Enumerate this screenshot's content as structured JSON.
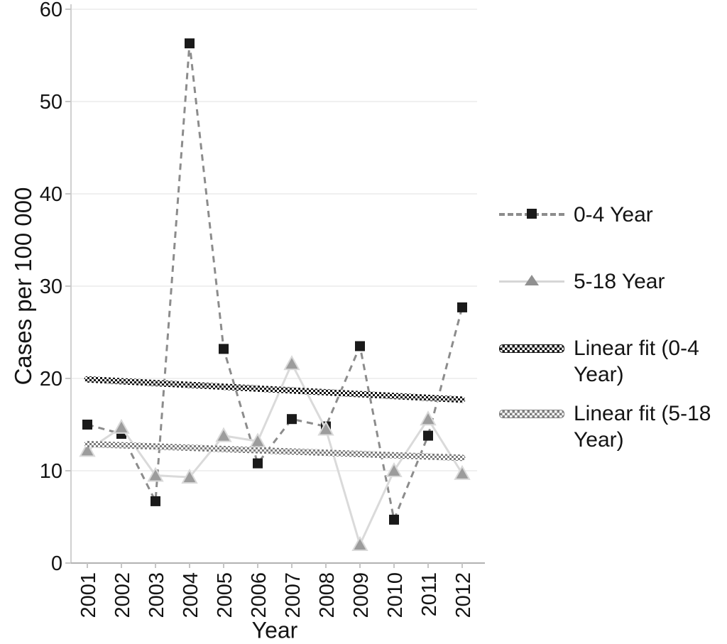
{
  "axes": {
    "y_label": "Cases per 100 000",
    "x_label": "Year",
    "y_ticks": [
      0,
      10,
      20,
      30,
      40,
      50,
      60
    ],
    "x_tick_labels": [
      "2001",
      "2002",
      "2003",
      "2004",
      "2005",
      "2006",
      "2007",
      "2008",
      "2009",
      "2010",
      "2011",
      "2012"
    ]
  },
  "legend": {
    "entries": [
      {
        "label": "0-4 Year"
      },
      {
        "label": "5-18 Year"
      },
      {
        "label": "Linear fit (0-4 Year)"
      },
      {
        "label": "Linear fit (5-18 Year)"
      }
    ]
  },
  "colors": {
    "series_0_4_line": "#8c8c8c",
    "series_0_4_marker": "#1a1a1a",
    "series_5_18_line": "#dadada",
    "series_5_18_marker": "#9c9c9c",
    "fit_0_4": "#161616",
    "fit_5_18": "#7d7d7d",
    "gridline": "#ececec",
    "axis_line": "#b2b2b2"
  },
  "chart_data": {
    "type": "line",
    "title": "",
    "xlabel": "Year",
    "ylabel": "Cases per 100 000",
    "ylim": [
      0,
      60
    ],
    "grid": true,
    "legend_position": "right",
    "categories": [
      "2001",
      "2002",
      "2003",
      "2004",
      "2005",
      "2006",
      "2007",
      "2008",
      "2009",
      "2010",
      "2011",
      "2012"
    ],
    "series": [
      {
        "name": "0-4 Year",
        "type": "line",
        "marker": "square",
        "line_style": "dashed",
        "line_color": "#8c8c8c",
        "marker_color": "#1a1a1a",
        "values": [
          15.0,
          14.0,
          6.7,
          56.3,
          23.2,
          10.8,
          15.6,
          14.8,
          23.5,
          4.7,
          13.8,
          27.7
        ]
      },
      {
        "name": "5-18 Year",
        "type": "line",
        "marker": "triangle",
        "line_style": "solid",
        "line_color": "#dadada",
        "marker_color": "#9c9c9c",
        "values": [
          12.2,
          14.7,
          9.5,
          9.3,
          13.8,
          13.2,
          21.6,
          14.5,
          2.0,
          10.0,
          15.6,
          9.7
        ]
      },
      {
        "name": "Linear fit (0-4 Year)",
        "type": "trendline",
        "line_style": "checker",
        "line_color": "#161616",
        "values": [
          19.9,
          17.7
        ]
      },
      {
        "name": "Linear fit (5-18 Year)",
        "type": "trendline",
        "line_style": "checker",
        "line_color": "#7d7d7d",
        "values": [
          12.9,
          11.4
        ]
      }
    ]
  }
}
